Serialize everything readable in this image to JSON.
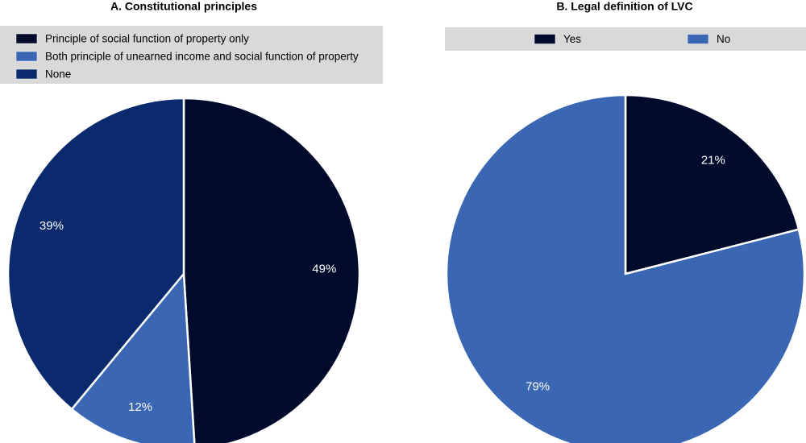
{
  "chart_data": [
    {
      "type": "pie",
      "title": "A. Constitutional principles",
      "categories": [
        "Principle of social function of property only",
        "Both principle of unearned income and social function of property",
        "None"
      ],
      "values": [
        49,
        12,
        39
      ],
      "value_labels": [
        "49%",
        "12%",
        "39%"
      ],
      "colors": [
        "#000b2c",
        "#3a66b4",
        "#0b2a6e"
      ],
      "legend": "top"
    },
    {
      "type": "pie",
      "title": "B. Legal definition of LVC",
      "categories": [
        "Yes",
        "No"
      ],
      "values": [
        21,
        79
      ],
      "value_labels": [
        "21%",
        "79%"
      ],
      "colors": [
        "#000b2c",
        "#3a66b4"
      ],
      "legend": "top"
    }
  ]
}
